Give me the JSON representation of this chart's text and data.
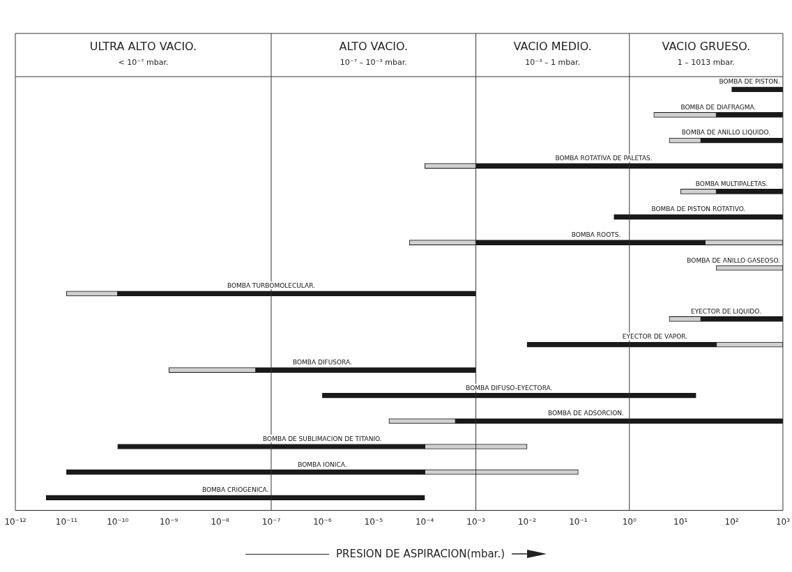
{
  "chart_data": {
    "type": "bar",
    "orientation": "horizontal",
    "log": "x",
    "xlabel": "PRESION DE ASPIRACION(mbar.)",
    "categories": [
      "BOMBA DE PISTON.",
      "BOMBA DE DIAFRAGMA.",
      "BOMBA DE ANILLO LIQUIDO.",
      "BOMBA ROTATIVA DE PALETAS.",
      "BOMBA MULTIPALETAS.",
      "BOMBA DE PISTON ROTATIVO.",
      "BOMBA ROOTS.",
      "BOMBA DE ANILLO GASEOSO.",
      "BOMBA TURBOMOLECULAR.",
      "EYECTOR DE LIQUIDO.",
      "EYECTOR DE VAPOR.",
      "BOMBA DIFUSORA.",
      "BOMBA DIFUSO-EYECTORA.",
      "BOMBA DE ADSORCION.",
      "BOMBA DE SUBLIMACION DE TITANIO.",
      "BOMBA IONICA.",
      "BOMBA CRIOGENICA."
    ],
    "series": [
      {
        "color": "#d0d0d0",
        "base": [
          null,
          3,
          6,
          0.0001,
          10,
          null,
          5e-05,
          null,
          1e-11,
          6,
          null,
          1e-09,
          null,
          2e-05,
          null,
          null,
          null
        ],
        "values": [
          null,
          47,
          19,
          0.0009,
          40,
          null,
          0.00095,
          null,
          9e-11,
          19,
          null,
          4.9e-08,
          null,
          0.00038,
          null,
          null,
          null
        ]
      },
      {
        "color": "#1a1a1a",
        "base": [
          100,
          50,
          25,
          0.001,
          50,
          0.5,
          0.001,
          null,
          1e-10,
          25,
          0.01,
          5e-08,
          1e-06,
          0.0004,
          1e-10,
          1e-11,
          4e-12
        ],
        "values": [
          900,
          950,
          975,
          999.999,
          950,
          999.5,
          29.999,
          null,
          0.0009999,
          975,
          49.99,
          0.00099995,
          19.999999,
          999.9996,
          9.99999e-05,
          9.999999e-05,
          9.9999996e-05
        ]
      },
      {
        "color": "#d0d0d0",
        "base": [
          null,
          null,
          null,
          null,
          null,
          null,
          30,
          50,
          null,
          null,
          50,
          null,
          null,
          null,
          0.0001,
          0.0001,
          null
        ],
        "values": [
          null,
          null,
          null,
          null,
          null,
          null,
          970,
          950,
          null,
          null,
          950,
          null,
          null,
          null,
          0.0099,
          0.0999,
          null
        ]
      }
    ],
    "xlim": [
      1e-12,
      1000
    ],
    "xticks": [
      {
        "value": 1e-12,
        "label": "10⁻¹²"
      },
      {
        "value": 1e-11,
        "label": "10⁻¹¹"
      },
      {
        "value": 1e-10,
        "label": "10⁻¹⁰"
      },
      {
        "value": 1e-09,
        "label": "10⁻⁹"
      },
      {
        "value": 1e-08,
        "label": "10⁻⁸"
      },
      {
        "value": 1e-07,
        "label": "10⁻⁷"
      },
      {
        "value": 1e-06,
        "label": "10⁻⁶"
      },
      {
        "value": 1e-05,
        "label": "10⁻⁵"
      },
      {
        "value": 0.0001,
        "label": "10⁻⁴"
      },
      {
        "value": 0.001,
        "label": "10⁻³"
      },
      {
        "value": 0.01,
        "label": "10⁻²"
      },
      {
        "value": 0.1,
        "label": "10⁻¹"
      },
      {
        "value": 1,
        "label": "10⁰"
      },
      {
        "value": 10,
        "label": "10¹"
      },
      {
        "value": 100,
        "label": "10²"
      },
      {
        "value": 1000,
        "label": "10³"
      }
    ],
    "ref_lines": [
      {
        "axis": "x",
        "value": 1e-07,
        "color": "#333333"
      },
      {
        "axis": "x",
        "value": 0.001,
        "color": "#333333"
      },
      {
        "axis": "x",
        "value": 1,
        "color": "#333333"
      }
    ],
    "annotations": [
      "ULTRA ALTO VACIO.\n< 10⁻⁷ mbar.",
      "ALTO VACIO.\n10⁻⁷ – 10⁻³ mbar.",
      "VACIO MEDIO.\n10⁻³ – 1 mbar.",
      "VACIO GRUESO.\n1 – 1013 mbar."
    ]
  }
}
